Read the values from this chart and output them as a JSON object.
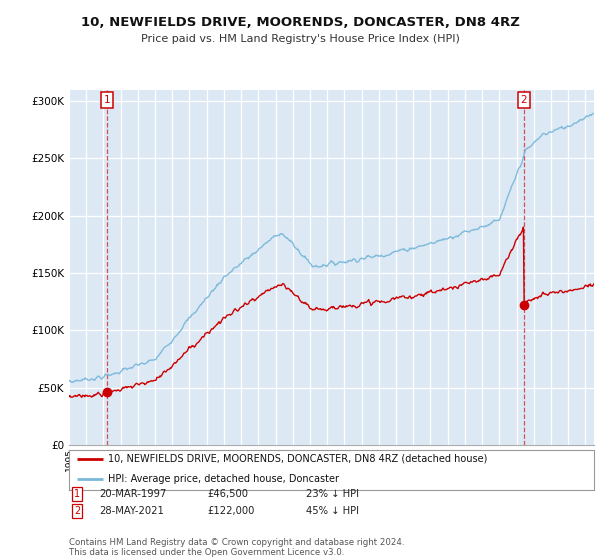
{
  "title": "10, NEWFIELDS DRIVE, MOORENDS, DONCASTER, DN8 4RZ",
  "subtitle": "Price paid vs. HM Land Registry's House Price Index (HPI)",
  "hpi_label": "HPI: Average price, detached house, Doncaster",
  "price_label": "10, NEWFIELDS DRIVE, MOORENDS, DONCASTER, DN8 4RZ (detached house)",
  "footnote": "Contains HM Land Registry data © Crown copyright and database right 2024.\nThis data is licensed under the Open Government Licence v3.0.",
  "purchase1_year": 1997.22,
  "purchase1_price": 46500,
  "purchase2_year": 2021.41,
  "purchase2_price": 122000,
  "hpi_color": "#7ab8d9",
  "price_color": "#cc0000",
  "plot_bg": "#dce9f5",
  "grid_color": "#ffffff",
  "ylim": [
    0,
    310000
  ],
  "xlim_start": 1995.0,
  "xlim_end": 2025.5
}
